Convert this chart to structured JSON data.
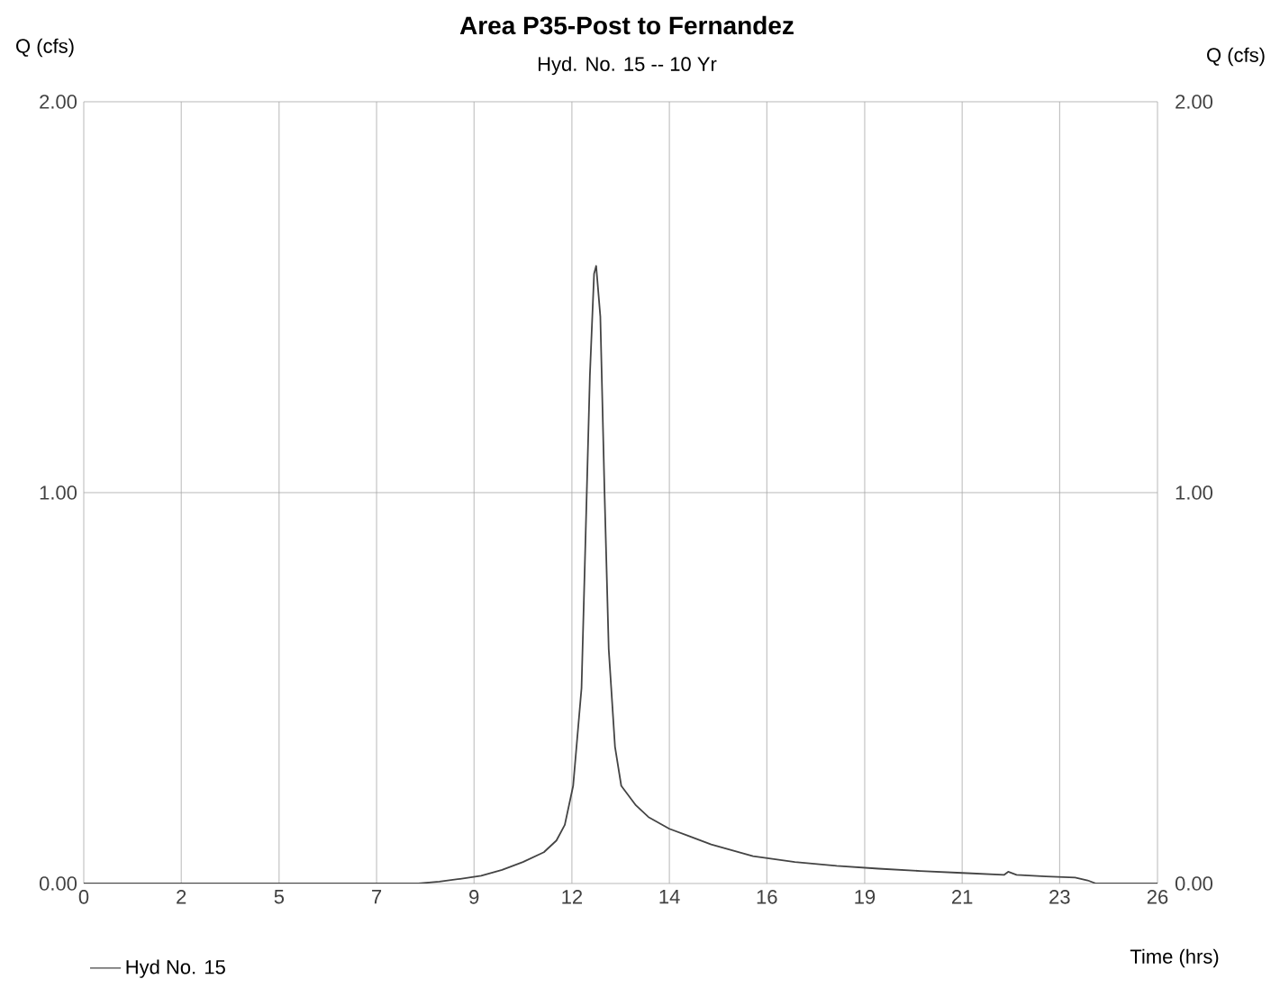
{
  "chart_data": {
    "type": "line",
    "title": "Area P35-Post to Fernandez",
    "subtitle": "Hyd. No. 15 -- 10 Yr",
    "xlabel": "Time (hrs)",
    "ylabel": "Q (cfs)",
    "y2label": "Q (cfs)",
    "x": [
      0,
      2,
      4,
      6,
      7,
      8,
      8.5,
      9,
      9.5,
      10,
      10.5,
      11,
      11.3,
      11.5,
      11.7,
      11.9,
      12.0,
      12.1,
      12.2,
      12.25,
      12.35,
      12.45,
      12.55,
      12.7,
      12.85,
      13.2,
      13.5,
      14,
      14.5,
      15,
      16,
      17,
      18,
      19,
      20,
      21,
      22,
      22.1,
      22.3,
      23,
      23.7,
      24.0,
      24.2,
      25.67
    ],
    "series": [
      {
        "name": "Hyd No. 15",
        "color": "#444444",
        "values": [
          0,
          0,
          0,
          0,
          0,
          0,
          0.005,
          0.012,
          0.02,
          0.035,
          0.055,
          0.08,
          0.11,
          0.15,
          0.25,
          0.5,
          0.9,
          1.3,
          1.56,
          1.58,
          1.45,
          1.0,
          0.6,
          0.35,
          0.25,
          0.2,
          0.17,
          0.14,
          0.12,
          0.1,
          0.07,
          0.055,
          0.045,
          0.038,
          0.032,
          0.027,
          0.022,
          0.03,
          0.022,
          0.018,
          0.015,
          0.008,
          0,
          0
        ]
      }
    ],
    "xlim": [
      0,
      25.67
    ],
    "xticks": [
      {
        "value": 0,
        "label": "0"
      },
      {
        "value": 2.33,
        "label": "2"
      },
      {
        "value": 4.67,
        "label": "5"
      },
      {
        "value": 7,
        "label": "7"
      },
      {
        "value": 9.33,
        "label": "9"
      },
      {
        "value": 11.67,
        "label": "12"
      },
      {
        "value": 14,
        "label": "14"
      },
      {
        "value": 16.33,
        "label": "16"
      },
      {
        "value": 18.67,
        "label": "19"
      },
      {
        "value": 21,
        "label": "21"
      },
      {
        "value": 23.33,
        "label": "23"
      },
      {
        "value": 25.67,
        "label": "26"
      }
    ],
    "ylim": [
      0,
      2
    ],
    "yticks": [
      {
        "value": 0,
        "label": "0.00"
      },
      {
        "value": 1,
        "label": "1.00"
      },
      {
        "value": 2,
        "label": "2.00"
      }
    ],
    "y2lim": [
      0,
      2
    ],
    "y2ticks": [
      {
        "value": 0,
        "label": "0.00"
      },
      {
        "value": 1,
        "label": "1.00"
      },
      {
        "value": 2,
        "label": "2.00"
      }
    ],
    "grid": true,
    "legend": "bottom left",
    "line_style": "solid",
    "marker": "none"
  }
}
